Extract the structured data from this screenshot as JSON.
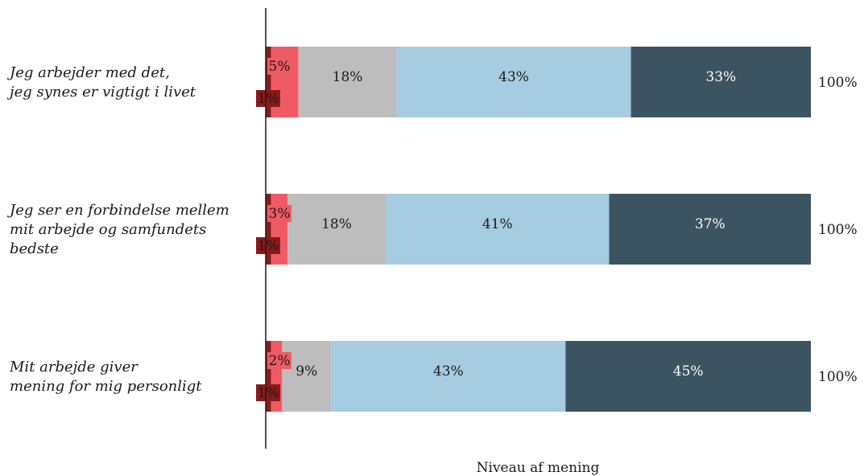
{
  "chart_data": {
    "type": "bar",
    "orientation": "horizontal",
    "stacked": true,
    "categories": [
      [
        "Jeg arbejder med det,",
        "jeg synes er vigtigt i livet"
      ],
      [
        "Jeg ser en forbindelse mellem",
        "mit arbejde og samfundets",
        "bedste"
      ],
      [
        "Mit arbejde giver",
        "mening for mig personligt"
      ]
    ],
    "series": [
      {
        "values": [
          1,
          1,
          1
        ],
        "color": "#8b1a1a",
        "label_color": "#1a1a1a",
        "label_style": "badge-low"
      },
      {
        "values": [
          5,
          3,
          2
        ],
        "color": "#ef5b64",
        "label_color": "#1a1a1a",
        "label_style": "badge-high"
      },
      {
        "values": [
          18,
          18,
          9
        ],
        "color": "#bdbdbd",
        "label_color": "#1a1a1a"
      },
      {
        "values": [
          43,
          41,
          43
        ],
        "color": "#a5cce0",
        "label_color": "#1a1a1a"
      },
      {
        "values": [
          33,
          37,
          45
        ],
        "color": "#3c5361",
        "label_color": "#ffffff"
      }
    ],
    "segment_labels": [
      [
        "1%",
        "5%",
        "18%",
        "43%",
        "33%"
      ],
      [
        "1%",
        "3%",
        "18%",
        "41%",
        "37%"
      ],
      [
        "1%",
        "2%",
        "9%",
        "43%",
        "45%"
      ]
    ],
    "totals": [
      "100%",
      "100%",
      "100%"
    ],
    "xlabel": "Niveau af mening",
    "grid": false,
    "legend": "none"
  }
}
